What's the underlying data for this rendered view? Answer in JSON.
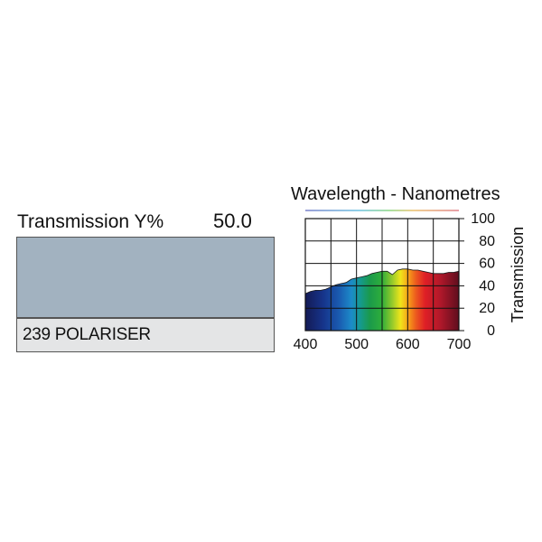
{
  "filter": {
    "transmission_label": "Transmission Y%",
    "transmission_value": "50.0",
    "name": "239 POLARISER",
    "swatch_color": "#a2b2c0",
    "name_box_color": "#e4e5e6"
  },
  "chart_data": {
    "type": "area",
    "title": "Wavelength - Nanometres",
    "xlabel": "",
    "ylabel": "Transmission",
    "xlim": [
      400,
      700
    ],
    "ylim": [
      0,
      100
    ],
    "x_ticks": [
      400,
      500,
      600,
      700
    ],
    "y_ticks": [
      0,
      20,
      40,
      60,
      80,
      100
    ],
    "grid": true,
    "fill": "visible-spectrum",
    "series": [
      {
        "x": [
          400,
          410,
          420,
          430,
          440,
          450,
          460,
          470,
          480,
          490,
          500,
          510,
          520,
          530,
          540,
          550,
          560,
          570,
          575,
          580,
          590,
          600,
          610,
          620,
          630,
          640,
          650,
          660,
          670,
          680,
          690,
          700
        ],
        "y": [
          33,
          35,
          36,
          36,
          37,
          39,
          41,
          42,
          43,
          46,
          47,
          48,
          49,
          51,
          52,
          53,
          53,
          50,
          52,
          54,
          55,
          55,
          54,
          54,
          53,
          52,
          51,
          51,
          51,
          52,
          52,
          53
        ]
      }
    ]
  }
}
